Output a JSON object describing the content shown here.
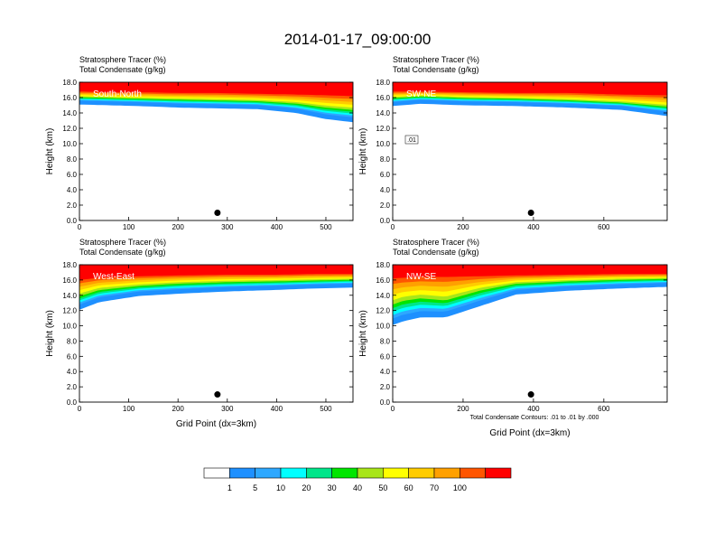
{
  "title": "2014-01-17_09:00:00",
  "panel_titles": [
    "Stratosphere Tracer   (%)",
    "Total Condensate   (g/kg)"
  ],
  "y_label": "Height (km)",
  "x_label": "Grid Point (dx=3km)",
  "contour_note": "Total Condensate Contours: .01 to .01 by .000",
  "contour_label": ".01",
  "colorbar": {
    "colors": [
      "#ffffff",
      "#1e90ff",
      "#2ea8ff",
      "#00ffff",
      "#00e68a",
      "#00e600",
      "#a8e619",
      "#ffff00",
      "#ffcc00",
      "#ffa000",
      "#ff5500",
      "#ff0000"
    ],
    "labels": [
      "1",
      "5",
      "10",
      "20",
      "30",
      "40",
      "50",
      "60",
      "70",
      "100"
    ]
  },
  "chart_data": [
    {
      "type": "heatmap",
      "name": "South-North",
      "x_ticks": [
        0,
        100,
        200,
        300,
        400,
        500
      ],
      "xlim": [
        0,
        555
      ],
      "y_ticks": [
        "0.0",
        "2.0",
        "4.0",
        "6.0",
        "8.0",
        "10.0",
        "12.0",
        "14.0",
        "16.0",
        "18.0"
      ],
      "ylim": [
        0,
        18
      ],
      "marker": [
        280,
        1.0
      ],
      "tracer_bands": {
        "x": [
          0,
          60,
          120,
          200,
          280,
          360,
          440,
          500,
          555
        ],
        "levels_5": [
          15.5,
          15.4,
          15.3,
          15.1,
          15.0,
          14.9,
          14.4,
          13.6,
          13.2
        ],
        "levels_50": [
          16.1,
          16.0,
          15.9,
          15.8,
          15.7,
          15.6,
          15.3,
          14.8,
          14.5
        ],
        "levels_100": [
          16.8,
          16.7,
          16.7,
          16.6,
          16.6,
          16.5,
          16.4,
          16.3,
          16.2
        ]
      }
    },
    {
      "type": "heatmap",
      "name": "SW-NE",
      "x_ticks": [
        0,
        200,
        400,
        600
      ],
      "xlim": [
        0,
        780
      ],
      "y_ticks": [
        "0.0",
        "2.0",
        "4.0",
        "6.0",
        "8.0",
        "10.0",
        "12.0",
        "14.0",
        "16.0",
        "18.0"
      ],
      "ylim": [
        0,
        18
      ],
      "marker": [
        393,
        1.0
      ],
      "tracer_bands": {
        "x": [
          0,
          80,
          200,
          350,
          500,
          650,
          780
        ],
        "levels_5": [
          15.3,
          15.6,
          15.4,
          15.3,
          15.1,
          14.8,
          14.0
        ],
        "levels_50": [
          16.0,
          16.2,
          16.0,
          15.9,
          15.7,
          15.4,
          14.9
        ],
        "levels_100": [
          16.8,
          16.8,
          16.7,
          16.6,
          16.6,
          16.4,
          16.3
        ]
      }
    },
    {
      "type": "heatmap",
      "name": "West-East",
      "x_ticks": [
        0,
        100,
        200,
        300,
        400,
        500
      ],
      "xlim": [
        0,
        555
      ],
      "y_ticks": [
        "0.0",
        "2.0",
        "4.0",
        "6.0",
        "8.0",
        "10.0",
        "12.0",
        "14.0",
        "16.0",
        "18.0"
      ],
      "ylim": [
        0,
        18
      ],
      "marker": [
        280,
        1.0
      ],
      "tracer_bands": {
        "x": [
          0,
          40,
          120,
          200,
          300,
          400,
          480,
          555
        ],
        "levels_5": [
          12.5,
          13.5,
          14.3,
          14.6,
          14.9,
          15.1,
          15.3,
          15.4
        ],
        "levels_50": [
          14.0,
          14.8,
          15.3,
          15.6,
          15.8,
          15.9,
          16.0,
          16.1
        ],
        "levels_100": [
          16.0,
          16.3,
          16.5,
          16.6,
          16.7,
          16.7,
          16.8,
          16.8
        ]
      }
    },
    {
      "type": "heatmap",
      "name": "NW-SE",
      "x_ticks": [
        0,
        200,
        400,
        600
      ],
      "xlim": [
        0,
        780
      ],
      "y_ticks": [
        "0.0",
        "2.0",
        "4.0",
        "6.0",
        "8.0",
        "10.0",
        "12.0",
        "14.0",
        "16.0",
        "18.0"
      ],
      "ylim": [
        0,
        18
      ],
      "marker": [
        393,
        1.0
      ],
      "tracer_bands": {
        "x": [
          0,
          30,
          80,
          150,
          250,
          350,
          500,
          650,
          780
        ],
        "levels_5": [
          10.5,
          11.0,
          11.5,
          11.5,
          13.0,
          14.5,
          15.0,
          15.3,
          15.5
        ],
        "levels_50": [
          13.0,
          13.5,
          13.8,
          13.5,
          14.8,
          15.6,
          15.9,
          16.1,
          16.2
        ],
        "levels_100": [
          16.2,
          16.3,
          16.4,
          16.4,
          16.5,
          16.6,
          16.7,
          16.8,
          16.8
        ]
      }
    }
  ]
}
